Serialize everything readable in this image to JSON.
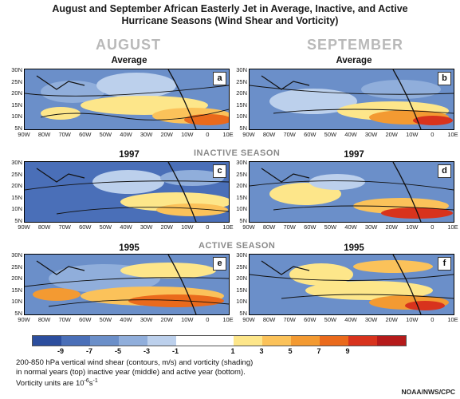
{
  "title_line1": "August and September African Easterly Jet in Average, Inactive, and Active",
  "title_line2": "Hurricane Seasons (Wind Shear and Vorticity)",
  "month_left": "AUGUST",
  "month_right": "SEPTEMBER",
  "season_inactive": "INACTIVE SEASON",
  "season_active": "ACTIVE SEASON",
  "panels": [
    {
      "title": "Average",
      "label": "a"
    },
    {
      "title": "Average",
      "label": "b"
    },
    {
      "title": "1997",
      "label": "c"
    },
    {
      "title": "1997",
      "label": "d"
    },
    {
      "title": "1995",
      "label": "e"
    },
    {
      "title": "1995",
      "label": "f"
    }
  ],
  "lat_labels": [
    "30N",
    "25N",
    "20N",
    "15N",
    "10N",
    "5N"
  ],
  "lon_labels": [
    "90W",
    "80W",
    "70W",
    "60W",
    "50W",
    "40W",
    "30W",
    "20W",
    "10W",
    "0",
    "10E"
  ],
  "contour_labels": [
    "4",
    "8",
    "4",
    "8"
  ],
  "colorbar": {
    "colors": [
      "#2c4e9e",
      "#4a6fb8",
      "#6b8fc9",
      "#90aedb",
      "#bcd0ec",
      "#ffffff",
      "#ffffff",
      "#fde68a",
      "#fbc25a",
      "#f39a32",
      "#ea6a1c",
      "#d8331d",
      "#b51a1a"
    ],
    "labels": [
      "-9",
      "-7",
      "-5",
      "-3",
      "-1",
      "1",
      "3",
      "5",
      "7",
      "9"
    ]
  },
  "caption_line1": "200-850 hPa vertical wind shear (contours, m/s) and vorticity (shading)",
  "caption_line2": "in normal years (top) inactive year (middle) and active year (bottom).",
  "caption_line3": "Vorticity units are 10",
  "caption_exp": "-6",
  "caption_unit": "s",
  "caption_exp2": "-1",
  "credit": "NOAA/NWS/CPC"
}
